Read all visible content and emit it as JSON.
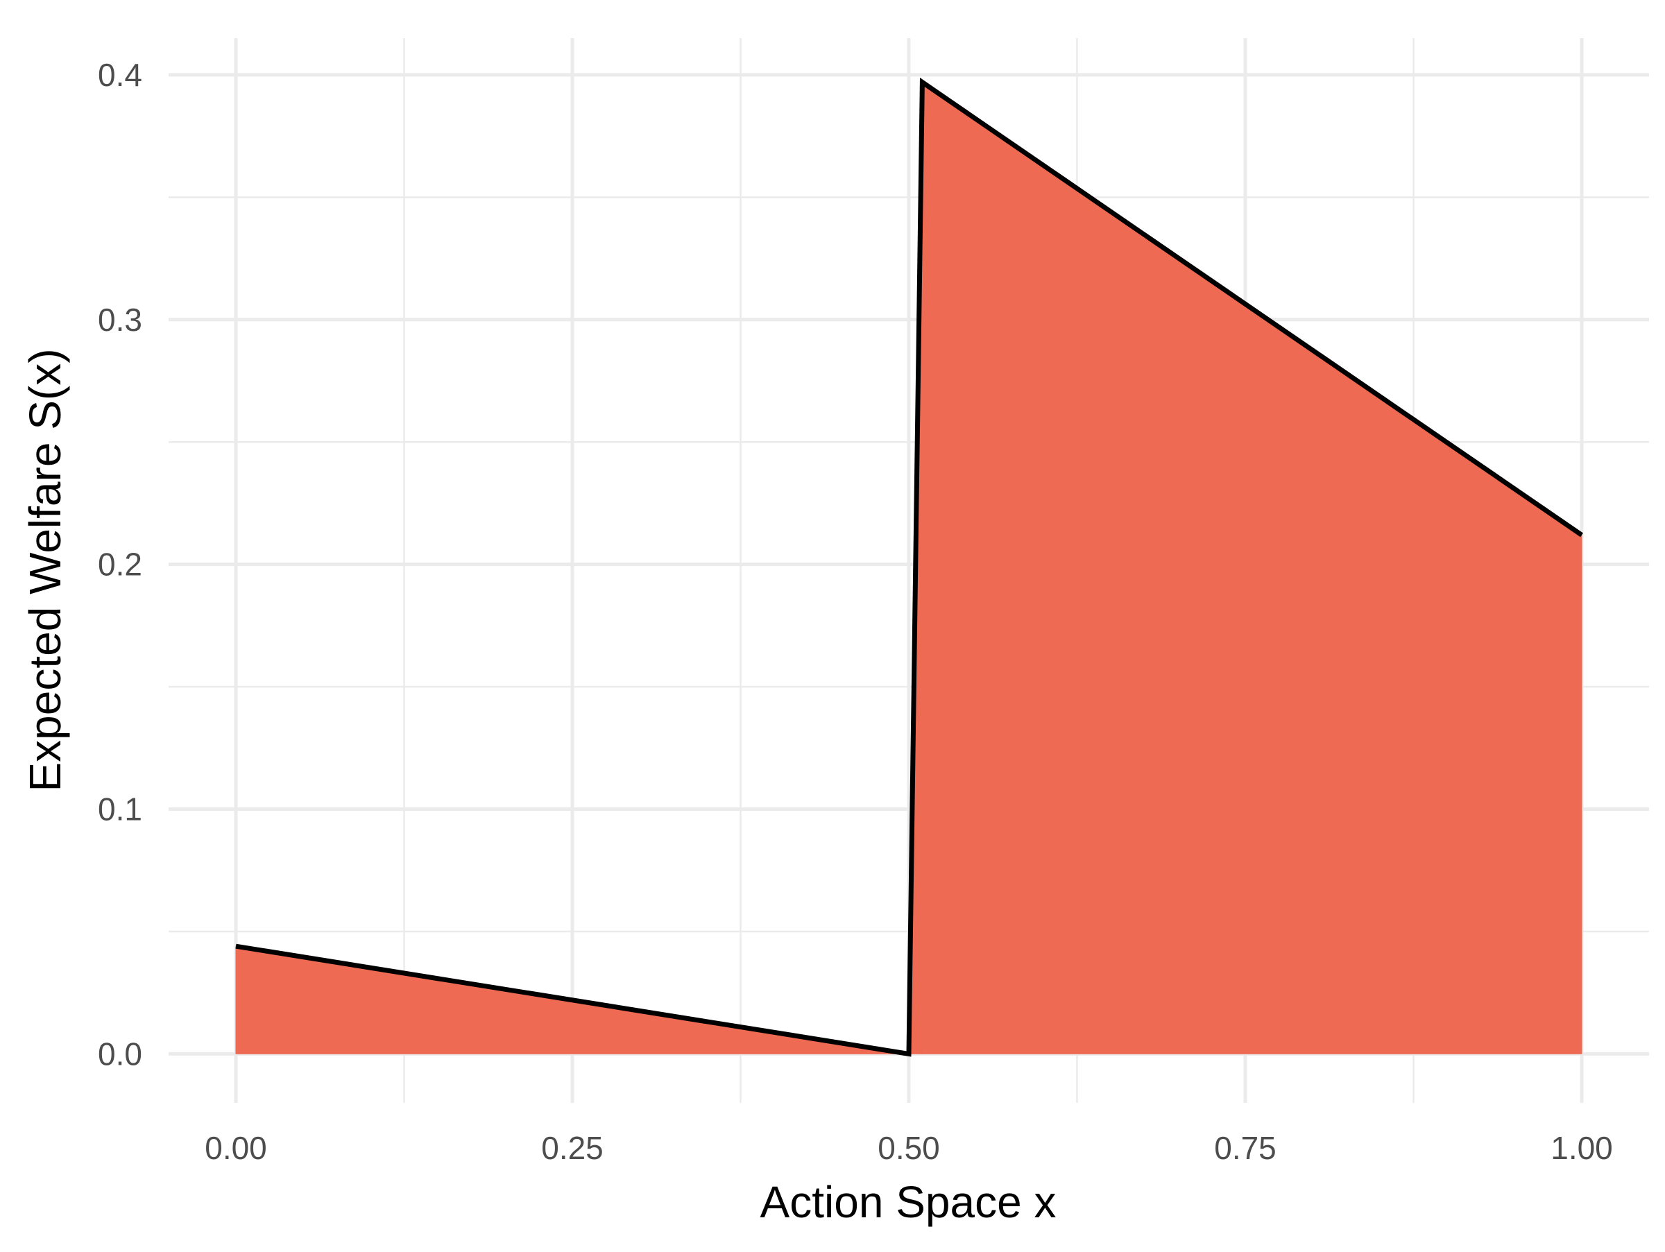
{
  "chart_data": {
    "type": "area",
    "xlabel": "Action Space x",
    "ylabel": "Expected Welfare S(x)",
    "xlim": [
      -0.05,
      1.05
    ],
    "ylim": [
      -0.02,
      0.415
    ],
    "x_ticks": [
      0.0,
      0.25,
      0.5,
      0.75,
      1.0
    ],
    "x_tick_labels": [
      "0.00",
      "0.25",
      "0.50",
      "0.75",
      "1.00"
    ],
    "y_ticks": [
      0.0,
      0.1,
      0.2,
      0.3,
      0.4
    ],
    "y_tick_labels": [
      "0.0",
      "0.1",
      "0.2",
      "0.3",
      "0.4"
    ],
    "grid": true,
    "series": [
      {
        "points": [
          {
            "x": 0.0,
            "y": 0.044
          },
          {
            "x": 0.5,
            "y": 0.0
          },
          {
            "x": 0.51,
            "y": 0.397
          },
          {
            "x": 1.0,
            "y": 0.212
          }
        ],
        "fill_color": "#EE6A53",
        "line_color": "#000000"
      }
    ]
  }
}
